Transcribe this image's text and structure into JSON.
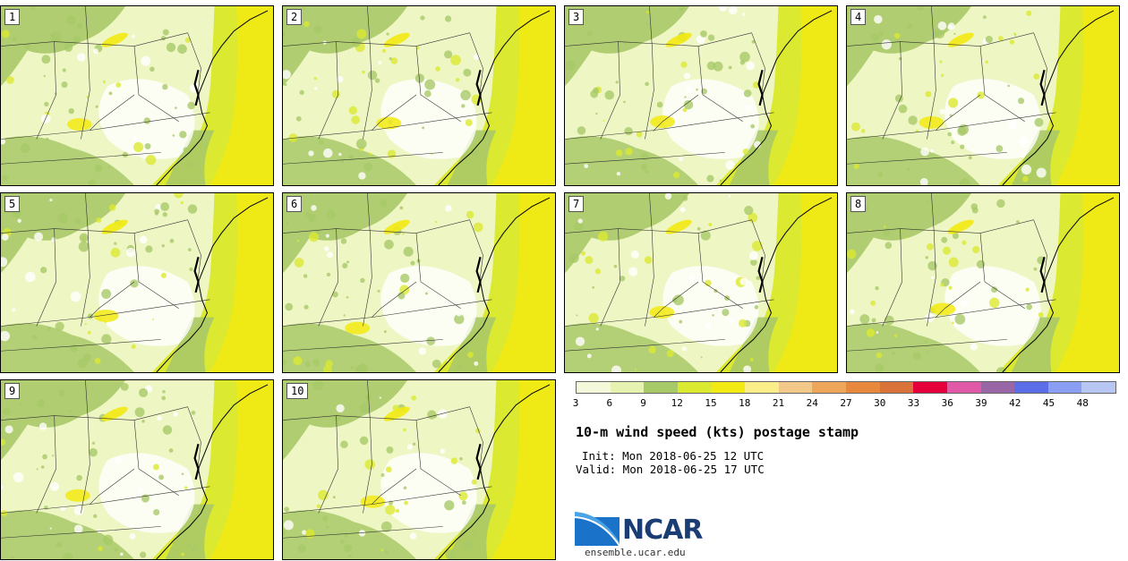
{
  "figure": {
    "title": "10-m wind speed (kts) postage stamp",
    "init": "Init: Mon 2018-06-25 12 UTC",
    "valid": "Valid: Mon 2018-06-25 17 UTC",
    "site": "ensemble.ucar.edu",
    "logo_text": "NCAR"
  },
  "panels": [
    {
      "label": "1"
    },
    {
      "label": "2"
    },
    {
      "label": "3"
    },
    {
      "label": "4"
    },
    {
      "label": "5"
    },
    {
      "label": "6"
    },
    {
      "label": "7"
    },
    {
      "label": "8"
    },
    {
      "label": "9"
    },
    {
      "label": "10"
    }
  ],
  "colorbar": {
    "ticks": [
      "3",
      "6",
      "9",
      "12",
      "15",
      "18",
      "21",
      "24",
      "27",
      "30",
      "33",
      "36",
      "39",
      "42",
      "45",
      "48"
    ],
    "colors": [
      "#f5f9dc",
      "#e6f2b0",
      "#a8c968",
      "#dbe931",
      "#f2ea12",
      "#fbed8a",
      "#f3c98a",
      "#eda65a",
      "#e8883d",
      "#d9733a",
      "#e5003c",
      "#e05aa8",
      "#9a67a6",
      "#5b6ee8",
      "#8a9ef4",
      "#b8c6f4"
    ]
  }
}
